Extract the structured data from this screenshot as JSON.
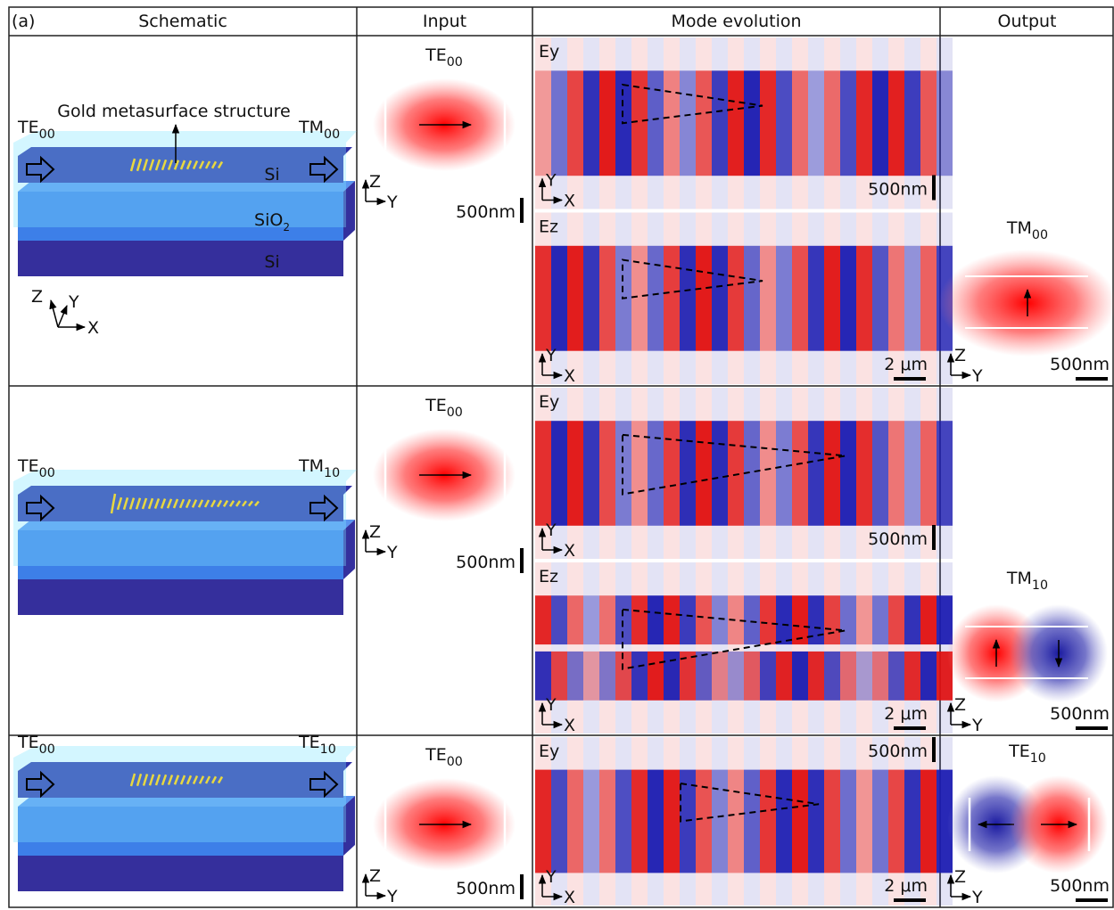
{
  "panel_label": "(a)",
  "headers": [
    "Schematic",
    "Input",
    "Mode evolution",
    "Output"
  ],
  "rows": [
    {
      "schematic": {
        "input_mode": {
          "base": "TE",
          "sub": "00"
        },
        "output_mode": {
          "base": "TM",
          "sub": "00"
        },
        "annotation": "Gold metasurface structure",
        "layers": [
          {
            "base": "Si"
          },
          {
            "base": "SiO",
            "sub": "2"
          },
          {
            "base": "Si"
          }
        ],
        "axes": [
          "Z",
          "Y",
          "X"
        ]
      },
      "input": {
        "mode": {
          "base": "TE",
          "sub": "00"
        },
        "axes": [
          "Z",
          "Y"
        ],
        "scale": "500nm"
      },
      "evolution": [
        {
          "field": "Ey",
          "axes": [
            "Y",
            "X"
          ],
          "scales": [
            "500nm"
          ]
        },
        {
          "field": "Ez",
          "axes": [
            "Y",
            "X"
          ],
          "scales": [
            "2 μm"
          ]
        }
      ],
      "output": {
        "mode": {
          "base": "TM",
          "sub": "00"
        },
        "axes": [
          "Z",
          "Y"
        ],
        "scale": "500nm"
      }
    },
    {
      "schematic": {
        "input_mode": {
          "base": "TE",
          "sub": "00"
        },
        "output_mode": {
          "base": "TM",
          "sub": "10"
        }
      },
      "input": {
        "mode": {
          "base": "TE",
          "sub": "00"
        },
        "axes": [
          "Z",
          "Y"
        ],
        "scale": "500nm"
      },
      "evolution": [
        {
          "field": "Ey",
          "axes": [
            "Y",
            "X"
          ],
          "scales": [
            "500nm"
          ]
        },
        {
          "field": "Ez",
          "axes": [
            "Y",
            "X"
          ],
          "scales": [
            "2 μm"
          ]
        }
      ],
      "output": {
        "mode": {
          "base": "TM",
          "sub": "10"
        },
        "axes": [
          "Z",
          "Y"
        ],
        "scale": "500nm"
      }
    },
    {
      "schematic": {
        "input_mode": {
          "base": "TE",
          "sub": "00"
        },
        "output_mode": {
          "base": "TE",
          "sub": "10"
        }
      },
      "input": {
        "mode": {
          "base": "TE",
          "sub": "00"
        },
        "axes": [
          "Z",
          "Y"
        ],
        "scale": "500nm"
      },
      "evolution": [
        {
          "field": "Ey",
          "axes": [
            "Y",
            "X"
          ],
          "scales": [
            "500nm",
            "2 μm"
          ]
        }
      ],
      "output": {
        "mode": {
          "base": "TE",
          "sub": "10"
        },
        "axes": [
          "Z",
          "Y"
        ],
        "scale": "500nm"
      }
    }
  ]
}
